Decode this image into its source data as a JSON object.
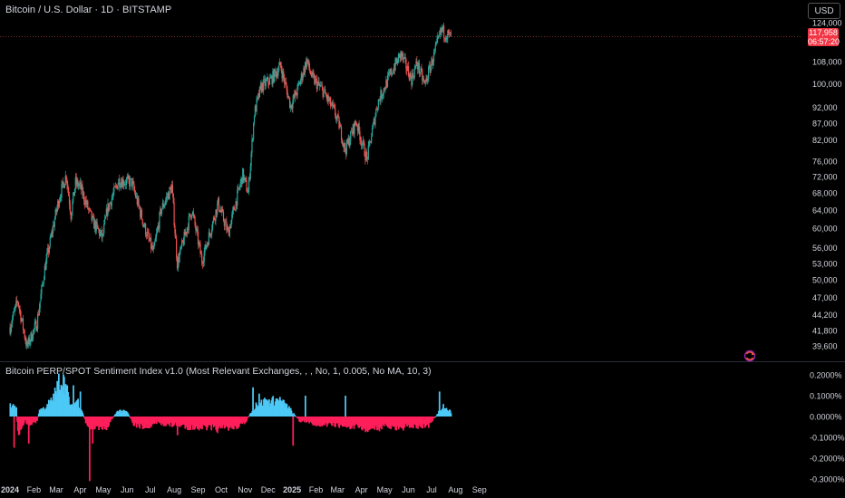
{
  "header": {
    "symbol_title": "Bitcoin / U.S. Dollar · 1D · BITSTAMP",
    "currency_button": "USD"
  },
  "last_price": {
    "value": "117,958",
    "countdown": "06:57:20",
    "color": "#f23645"
  },
  "indicator": {
    "title": "Bitcoin PERP/SPOT Sentiment Index v1.0 (Most Relevant Exchanges, , , No, 1, 0.005, No MA, 10, 3)"
  },
  "icons": {
    "sync": "sync-icon"
  },
  "colors": {
    "background": "#000000",
    "candle_up": "#26a69a",
    "candle_down": "#ef5350",
    "hist_positive": "#4dc9f6",
    "hist_negative": "#ff1f5a",
    "axis_text": "#d1d4dc",
    "separator": "#2a2e39"
  },
  "chart_data": [
    {
      "type": "candlestick",
      "scale": "log",
      "x_labels": [
        "2024",
        "Feb",
        "Mar",
        "Apr",
        "May",
        "Jun",
        "Jul",
        "Aug",
        "Sep",
        "Oct",
        "Nov",
        "Dec",
        "2025",
        "Feb",
        "Mar",
        "Apr",
        "May",
        "Jun",
        "Jul",
        "Aug",
        "Sep"
      ],
      "y_ticks": [
        124000,
        108000,
        100000,
        92000,
        87000,
        82000,
        76000,
        72000,
        68000,
        64000,
        60000,
        56000,
        53000,
        50000,
        47000,
        44200,
        41800,
        39600
      ],
      "y_tick_labels": [
        "124,000",
        "108,000",
        "100,000",
        "92,000",
        "87,000",
        "82,000",
        "76,000",
        "72,000",
        "68,000",
        "64,000",
        "60,000",
        "56,000",
        "53,000",
        "50,000",
        "47,000",
        "44,200",
        "41,800",
        "39,600"
      ],
      "anchors": [
        [
          "2024-01-01",
          42300
        ],
        [
          "2024-01-11",
          46500
        ],
        [
          "2024-01-23",
          39500
        ],
        [
          "2024-02-05",
          43000
        ],
        [
          "2024-02-15",
          52000
        ],
        [
          "2024-02-28",
          62000
        ],
        [
          "2024-03-05",
          67000
        ],
        [
          "2024-03-14",
          72500
        ],
        [
          "2024-03-20",
          63000
        ],
        [
          "2024-03-26",
          70500
        ],
        [
          "2024-04-01",
          69500
        ],
        [
          "2024-04-17",
          61500
        ],
        [
          "2024-04-30",
          58000
        ],
        [
          "2024-05-06",
          64000
        ],
        [
          "2024-05-21",
          71000
        ],
        [
          "2024-06-07",
          70500
        ],
        [
          "2024-06-24",
          60000
        ],
        [
          "2024-07-05",
          55000
        ],
        [
          "2024-07-15",
          64000
        ],
        [
          "2024-07-29",
          69500
        ],
        [
          "2024-08-05",
          53000
        ],
        [
          "2024-08-24",
          64000
        ],
        [
          "2024-09-06",
          53500
        ],
        [
          "2024-09-27",
          65500
        ],
        [
          "2024-10-10",
          59000
        ],
        [
          "2024-10-29",
          72500
        ],
        [
          "2024-11-05",
          68000
        ],
        [
          "2024-11-13",
          90000
        ],
        [
          "2024-11-22",
          99000
        ],
        [
          "2024-12-05",
          101500
        ],
        [
          "2024-12-17",
          106500
        ],
        [
          "2024-12-30",
          92500
        ],
        [
          "2025-01-07",
          97000
        ],
        [
          "2025-01-20",
          108500
        ],
        [
          "2025-01-27",
          102000
        ],
        [
          "2025-02-10",
          97500
        ],
        [
          "2025-02-24",
          91000
        ],
        [
          "2025-03-03",
          86500
        ],
        [
          "2025-03-11",
          79000
        ],
        [
          "2025-03-25",
          87500
        ],
        [
          "2025-04-08",
          76500
        ],
        [
          "2025-04-22",
          93500
        ],
        [
          "2025-05-08",
          103000
        ],
        [
          "2025-05-22",
          111000
        ],
        [
          "2025-06-05",
          101500
        ],
        [
          "2025-06-12",
          107500
        ],
        [
          "2025-06-22",
          99500
        ],
        [
          "2025-07-03",
          109500
        ],
        [
          "2025-07-14",
          121000
        ],
        [
          "2025-07-18",
          119500
        ],
        [
          "2025-07-26",
          117958
        ]
      ]
    },
    {
      "type": "bar",
      "name": "Bitcoin PERP/SPOT Sentiment Index v1.0",
      "y_ticks": [
        0.002,
        0.001,
        0,
        -0.001,
        -0.002,
        -0.003
      ],
      "y_tick_labels": [
        "0.2000%",
        "0.1000%",
        "0.0000%",
        "-0.1000%",
        "-0.2000%",
        "-0.3000%"
      ],
      "ylim": [
        -0.0031,
        0.0023
      ],
      "anchors": [
        [
          "2024-01-01",
          0.0005
        ],
        [
          "2024-01-09",
          0.0004
        ],
        [
          "2024-01-11",
          -0.0008
        ],
        [
          "2024-01-20",
          -0.0002
        ],
        [
          "2024-01-26",
          -0.0004
        ],
        [
          "2024-02-05",
          -0.0002
        ],
        [
          "2024-02-08",
          0.0003
        ],
        [
          "2024-02-20",
          0.0005
        ],
        [
          "2024-03-01",
          0.0012
        ],
        [
          "2024-03-05",
          0.0018
        ],
        [
          "2024-03-12",
          0.0016
        ],
        [
          "2024-03-20",
          0.0004
        ],
        [
          "2024-03-28",
          0.0008
        ],
        [
          "2024-04-03",
          0.0003
        ],
        [
          "2024-04-10",
          -0.0005
        ],
        [
          "2024-04-20",
          -0.0005
        ],
        [
          "2024-05-05",
          -0.0005
        ],
        [
          "2024-05-20",
          0.0003
        ],
        [
          "2024-06-01",
          0.0002
        ],
        [
          "2024-06-10",
          -0.0004
        ],
        [
          "2024-06-25",
          -0.0005
        ],
        [
          "2024-07-10",
          -0.0003
        ],
        [
          "2024-07-25",
          -0.0004
        ],
        [
          "2024-08-05",
          -0.0004
        ],
        [
          "2024-08-20",
          -0.0005
        ],
        [
          "2024-09-05",
          -0.0005
        ],
        [
          "2024-09-25",
          -0.0006
        ],
        [
          "2024-10-15",
          -0.0005
        ],
        [
          "2024-10-30",
          -0.0004
        ],
        [
          "2024-11-15",
          0.0006
        ],
        [
          "2024-12-01",
          0.0007
        ],
        [
          "2024-12-15",
          0.0008
        ],
        [
          "2024-12-28",
          0.0004
        ],
        [
          "2025-01-10",
          -0.0002
        ],
        [
          "2025-01-25",
          -0.0003
        ],
        [
          "2025-02-10",
          -0.0004
        ],
        [
          "2025-03-01",
          -0.0004
        ],
        [
          "2025-03-20",
          -0.0005
        ],
        [
          "2025-04-10",
          -0.0006
        ],
        [
          "2025-05-01",
          -0.0005
        ],
        [
          "2025-05-20",
          -0.0005
        ],
        [
          "2025-06-10",
          -0.0005
        ],
        [
          "2025-06-28",
          -0.0004
        ],
        [
          "2025-07-10",
          0.0002
        ],
        [
          "2025-07-20",
          0.0004
        ],
        [
          "2025-07-26",
          0.0002
        ]
      ],
      "spikes": [
        [
          "2024-01-06",
          -0.0015
        ],
        [
          "2024-01-25",
          -0.0013
        ],
        [
          "2024-02-20",
          0.0008
        ],
        [
          "2024-03-02",
          0.0017
        ],
        [
          "2024-03-11",
          0.0019
        ],
        [
          "2024-03-23",
          0.0015
        ],
        [
          "2024-04-01",
          0.0012
        ],
        [
          "2024-04-13",
          -0.0031
        ],
        [
          "2024-04-17",
          -0.0013
        ],
        [
          "2024-08-05",
          -0.0009
        ],
        [
          "2024-11-11",
          0.0014
        ],
        [
          "2024-11-19",
          0.0011
        ],
        [
          "2024-11-26",
          0.0009
        ],
        [
          "2025-01-02",
          -0.0014
        ],
        [
          "2025-01-18",
          0.001
        ],
        [
          "2025-03-11",
          0.001
        ],
        [
          "2025-04-07",
          -0.0007
        ],
        [
          "2025-07-11",
          0.0012
        ],
        [
          "2025-07-16",
          0.0006
        ]
      ]
    }
  ]
}
